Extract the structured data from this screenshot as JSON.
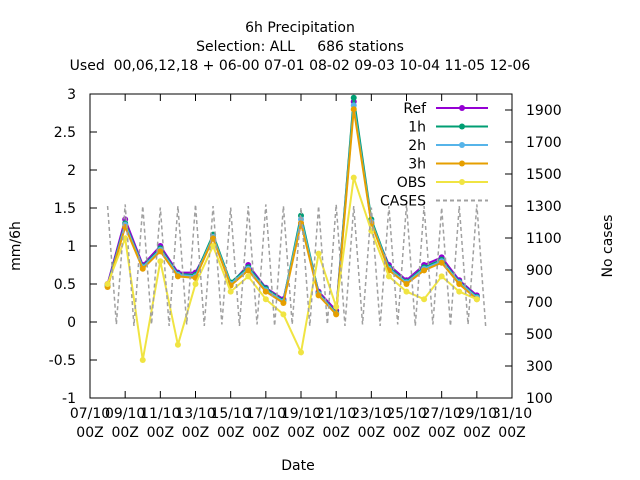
{
  "chart_data": {
    "type": "line",
    "title": "6h Precipitation",
    "subtitle": "Selection: ALL     686 stations",
    "annotation": "Used  00,06,12,18 + 06-00 07-01 08-02 09-03 10-04 11-05 12-06",
    "xlabel": "Date",
    "ylabel": "mm/6h",
    "y2label": "No cases",
    "x": [
      1,
      2,
      3,
      4,
      5,
      6,
      7,
      8,
      9,
      10,
      11,
      12,
      13,
      14,
      15,
      16,
      17,
      18,
      19,
      20,
      21,
      22
    ],
    "xlim": [
      0,
      24
    ],
    "xticks": [
      {
        "value": 0,
        "label": "07/10 00Z"
      },
      {
        "value": 2,
        "label": "09/10 00Z"
      },
      {
        "value": 4,
        "label": "11/10 00Z"
      },
      {
        "value": 6,
        "label": "13/10 00Z"
      },
      {
        "value": 8,
        "label": "15/10 00Z"
      },
      {
        "value": 10,
        "label": "17/10 00Z"
      },
      {
        "value": 12,
        "label": "19/10 00Z"
      },
      {
        "value": 14,
        "label": "21/10 00Z"
      },
      {
        "value": 16,
        "label": "23/10 00Z"
      },
      {
        "value": 18,
        "label": "25/10 00Z"
      },
      {
        "value": 20,
        "label": "27/10 00Z"
      },
      {
        "value": 22,
        "label": "29/10 00Z"
      },
      {
        "value": 24,
        "label": "31/10 00Z"
      }
    ],
    "ylim": [
      -1,
      3
    ],
    "yticks": [
      -1,
      -0.5,
      0,
      0.5,
      1,
      1.5,
      2,
      2.5,
      3
    ],
    "y2lim": [
      100,
      2000
    ],
    "y2ticks": [
      100,
      300,
      500,
      700,
      900,
      1100,
      1300,
      1500,
      1700,
      1900
    ],
    "legend": "top-right",
    "series": [
      {
        "name": "Ref",
        "color": "#9400d3",
        "values": [
          0.5,
          1.35,
          0.75,
          1.0,
          0.65,
          0.65,
          1.1,
          0.5,
          0.75,
          0.45,
          0.3,
          1.3,
          0.4,
          0.15,
          2.9,
          1.3,
          0.75,
          0.55,
          0.75,
          0.85,
          0.55,
          0.35
        ]
      },
      {
        "name": "1h",
        "color": "#009e73",
        "values": [
          0.48,
          1.3,
          0.73,
          0.97,
          0.63,
          0.62,
          1.15,
          0.52,
          0.72,
          0.44,
          0.28,
          1.4,
          0.38,
          0.12,
          2.95,
          1.35,
          0.72,
          0.53,
          0.72,
          0.82,
          0.53,
          0.33
        ]
      },
      {
        "name": "2h",
        "color": "#56b4e9",
        "values": [
          0.47,
          1.28,
          0.72,
          0.95,
          0.62,
          0.6,
          1.12,
          0.5,
          0.7,
          0.42,
          0.27,
          1.35,
          0.37,
          0.11,
          2.85,
          1.32,
          0.7,
          0.52,
          0.7,
          0.8,
          0.52,
          0.32
        ]
      },
      {
        "name": "3h",
        "color": "#e69f00",
        "values": [
          0.46,
          1.25,
          0.7,
          0.93,
          0.6,
          0.58,
          1.1,
          0.48,
          0.68,
          0.4,
          0.25,
          1.3,
          0.35,
          0.1,
          2.8,
          1.3,
          0.68,
          0.5,
          0.68,
          0.78,
          0.5,
          0.3
        ]
      },
      {
        "name": "OBS",
        "color": "#f0e442",
        "values": [
          0.5,
          1.1,
          -0.5,
          0.8,
          -0.3,
          0.5,
          1.0,
          0.4,
          0.6,
          0.3,
          0.1,
          -0.4,
          0.9,
          0.2,
          1.9,
          1.2,
          0.6,
          0.4,
          0.3,
          0.6,
          0.4,
          0.3
        ]
      },
      {
        "name": "CASES",
        "color": "#a0a0a0",
        "axis": "y2",
        "x": [
          1,
          1.5,
          2,
          2.5,
          3,
          3.5,
          4,
          4.5,
          5,
          5.5,
          6,
          6.5,
          7,
          7.5,
          8,
          8.5,
          9,
          9.5,
          10,
          10.5,
          11,
          11.5,
          12,
          12.5,
          13,
          13.5,
          14,
          14.5,
          15,
          15.5,
          16,
          16.5,
          17,
          17.5,
          18,
          18.5,
          19,
          19.5,
          20,
          20.5,
          21,
          21.5,
          22,
          22.5
        ],
        "values": [
          1300,
          560,
          1310,
          550,
          1300,
          560,
          1290,
          550,
          1300,
          560,
          1310,
          550,
          1300,
          560,
          1290,
          550,
          1300,
          560,
          1310,
          550,
          1300,
          560,
          1290,
          550,
          1300,
          560,
          1310,
          550,
          1300,
          560,
          1290,
          550,
          1300,
          560,
          1310,
          550,
          1300,
          560,
          1290,
          550,
          1300,
          560,
          1310,
          550
        ]
      }
    ]
  }
}
